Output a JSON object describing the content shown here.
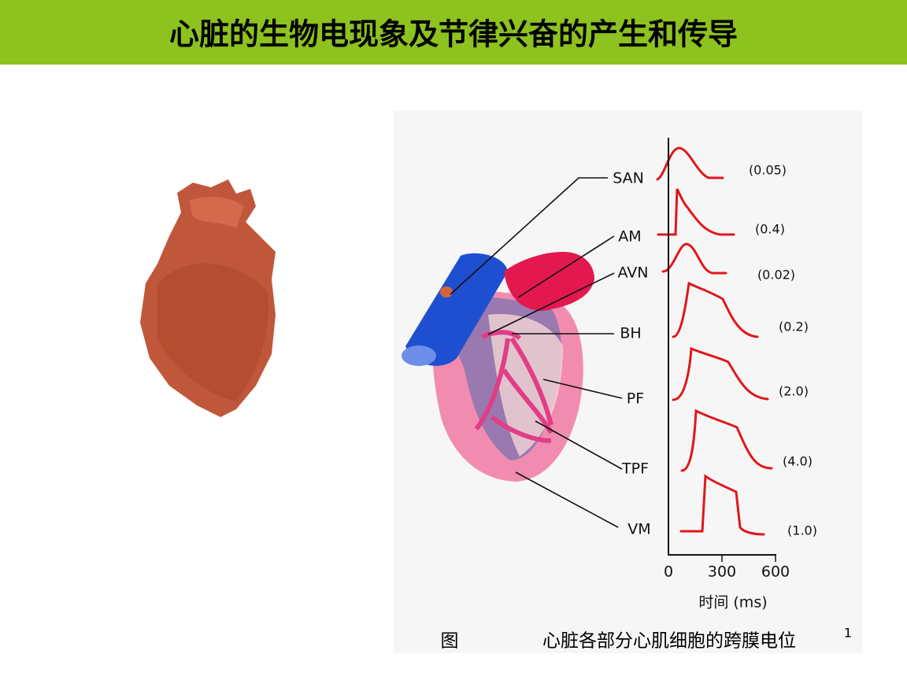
{
  "header": {
    "title": "心脏的生物电现象及节律兴奋的产生和传导"
  },
  "diagram": {
    "labels": [
      "SAN",
      "AM",
      "AVN",
      "BH",
      "PF",
      "TPF",
      "VM"
    ],
    "durations": [
      "(0.05)",
      "(0.4)",
      "(0.02)",
      "(0.2)",
      "(2.0)",
      "(4.0)",
      "(1.0)"
    ],
    "axis": {
      "ticks": [
        "0",
        "300",
        "600"
      ],
      "label": "时间 (ms)"
    },
    "caption": {
      "prefix": "图",
      "text": "心脏各部分心肌细胞的跨膜电位",
      "note": "1"
    }
  }
}
